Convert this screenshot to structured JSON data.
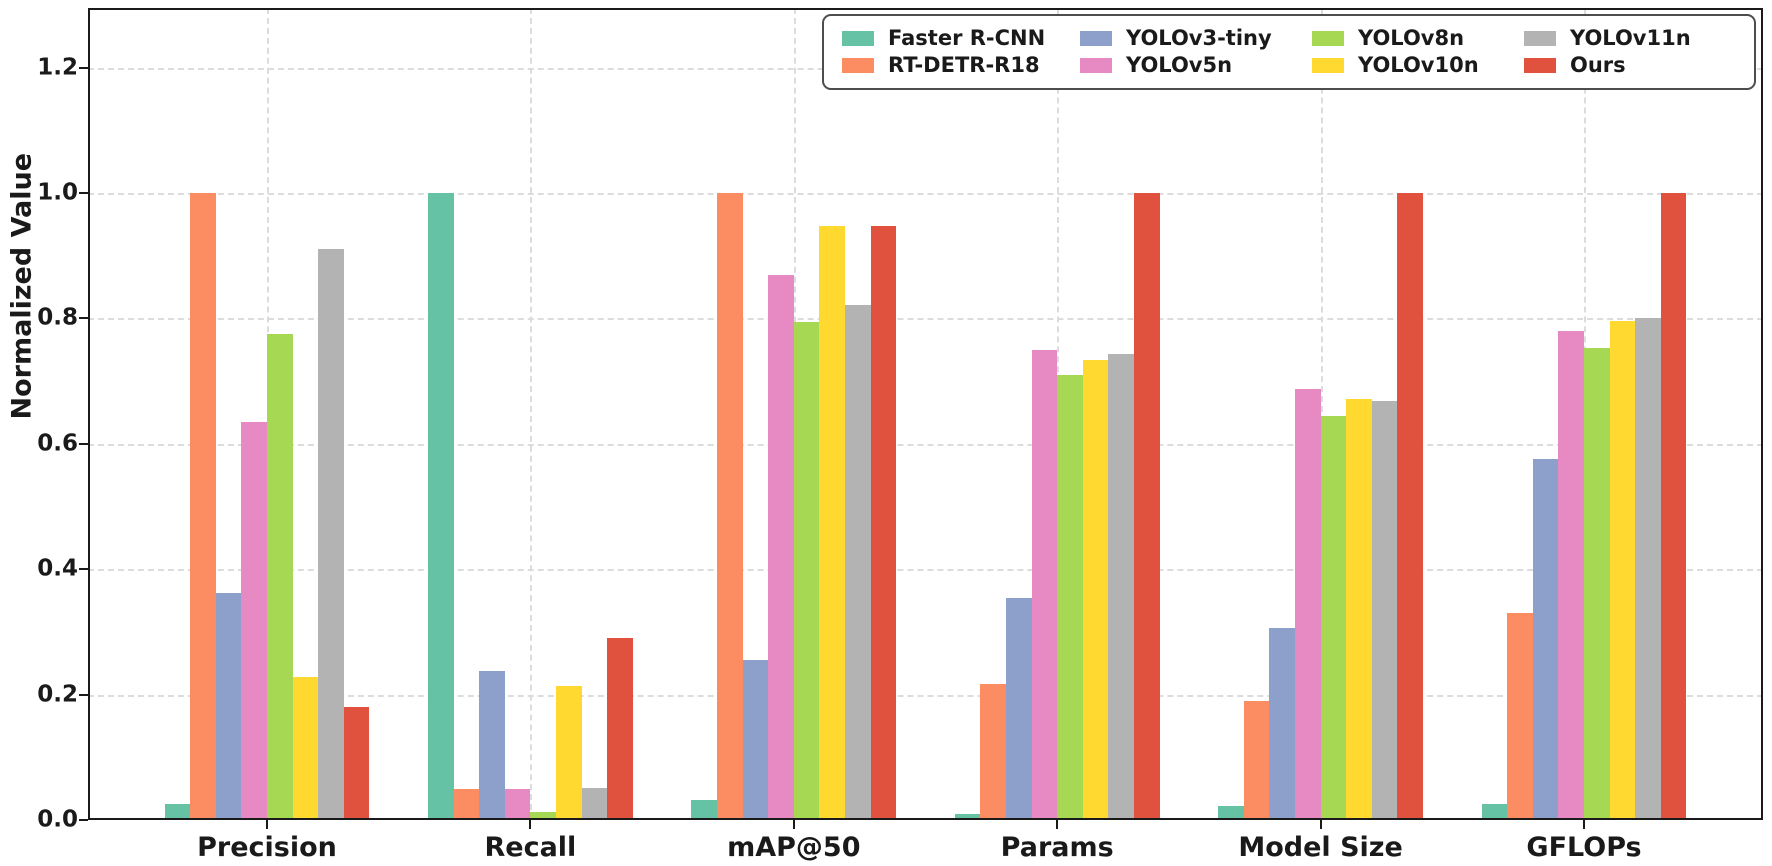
{
  "chart_data": {
    "type": "bar",
    "title": "",
    "xlabel": "",
    "ylabel": "Normalized Value",
    "ylim": [
      0.0,
      1.295
    ],
    "yticks": [
      "0.0",
      "0.2",
      "0.4",
      "0.6",
      "0.8",
      "1.0",
      "1.2"
    ],
    "ytick_values": [
      0.0,
      0.2,
      0.4,
      0.6,
      0.8,
      1.0,
      1.2
    ],
    "grid": true,
    "grid_style": "dashed",
    "legend_position": "top-right",
    "legend_columns": 4,
    "categories": [
      "Precision",
      "Recall",
      "mAP@50",
      "Params",
      "Model Size",
      "GFLOPs"
    ],
    "series": [
      {
        "name": "Faster R-CNN",
        "color": "#66c2a5",
        "values": [
          0.026,
          1.0,
          0.032,
          0.009,
          0.022,
          0.025
        ]
      },
      {
        "name": "RT-DETR-R18",
        "color": "#fc8d62",
        "values": [
          1.0,
          0.05,
          1.0,
          0.217,
          0.19,
          0.33
        ]
      },
      {
        "name": "YOLOv3-tiny",
        "color": "#8da0cb",
        "values": [
          0.362,
          0.238,
          0.255,
          0.354,
          0.306,
          0.575
        ]
      },
      {
        "name": "YOLOv5n",
        "color": "#e78ac3",
        "values": [
          0.635,
          0.05,
          0.87,
          0.75,
          0.688,
          0.78
        ]
      },
      {
        "name": "YOLOv8n",
        "color": "#a6d854",
        "values": [
          0.775,
          0.013,
          0.795,
          0.709,
          0.645,
          0.752
        ]
      },
      {
        "name": "YOLOv10n",
        "color": "#ffd92f",
        "values": [
          0.228,
          0.214,
          0.948,
          0.734,
          0.671,
          0.796
        ]
      },
      {
        "name": "YOLOv11n",
        "color": "#b3b3b3",
        "values": [
          0.91,
          0.051,
          0.821,
          0.744,
          0.668,
          0.801
        ]
      },
      {
        "name": "Ours",
        "color": "#e0513e",
        "values": [
          0.18,
          0.29,
          0.948,
          1.0,
          1.0,
          1.0
        ]
      }
    ]
  }
}
